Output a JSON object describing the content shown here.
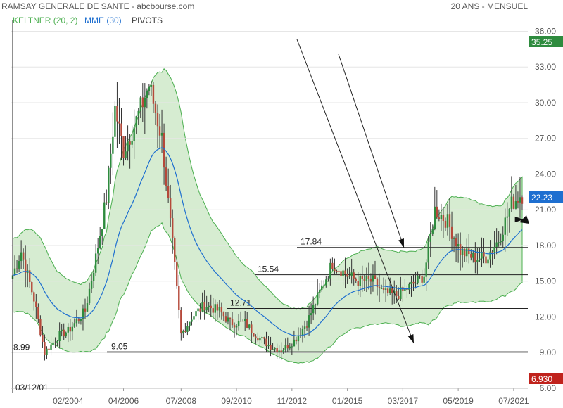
{
  "header": {
    "title": "RAMSAY GENERALE DE SANTE - abcbourse.com",
    "period": "20 ANS - MENSUEL"
  },
  "legend": [
    {
      "label": "KELTNER (20, 2)",
      "color": "#4caf50"
    },
    {
      "label": "MME (30)",
      "color": "#1e6fd0"
    },
    {
      "label": "PIVOTS",
      "color": "#444444"
    }
  ],
  "colors": {
    "up": "#2e8b3e",
    "down": "#b5493a",
    "band_fill": "#cfe9c9",
    "band_line": "#4caf50",
    "ema": "#1e6fd0"
  },
  "chart_data": {
    "type": "candlestick",
    "start_label": "03/12/01",
    "x_ticks": [
      "02/2004",
      "04/2006",
      "07/2008",
      "09/2010",
      "11/2012",
      "01/2015",
      "03/2017",
      "05/2019",
      "07/2021"
    ],
    "y_ticks": [
      "6.00",
      "9.00",
      "12.00",
      "15.00",
      "18.00",
      "21.00",
      "24.00",
      "27.00",
      "30.00",
      "33.00",
      "36.00"
    ],
    "ylim": [
      6,
      36.5
    ],
    "current_price": "22.23",
    "band_upper_value": "35.25",
    "band_lower_value": "6.930",
    "pivots": [
      {
        "label": "17.84",
        "value": 17.84
      },
      {
        "label": "15.54",
        "value": 15.54
      },
      {
        "label": "12.71",
        "value": 12.71
      },
      {
        "label": "9.05",
        "value": 9.05
      },
      {
        "label": "8.99",
        "value": 8.99
      }
    ],
    "price_path": [
      [
        "2001-12",
        15.5
      ],
      [
        "2002-04",
        17.5
      ],
      [
        "2002-10",
        13.5
      ],
      [
        "2003-03",
        9.0
      ],
      [
        "2003-10",
        10.5
      ],
      [
        "2004-02",
        10.8
      ],
      [
        "2004-10",
        12.5
      ],
      [
        "2005-03",
        17.0
      ],
      [
        "2005-08",
        22.0
      ],
      [
        "2005-12",
        29.5
      ],
      [
        "2006-04",
        26.0
      ],
      [
        "2006-10",
        28.5
      ],
      [
        "2007-04",
        31.5
      ],
      [
        "2007-10",
        27.0
      ],
      [
        "2008-03",
        18.0
      ],
      [
        "2008-07",
        10.5
      ],
      [
        "2008-12",
        12.0
      ],
      [
        "2009-06",
        13.0
      ],
      [
        "2010-01",
        12.5
      ],
      [
        "2010-06",
        11.5
      ],
      [
        "2011-01",
        11.5
      ],
      [
        "2011-06",
        10.5
      ],
      [
        "2012-01",
        9.5
      ],
      [
        "2012-06",
        9.2
      ],
      [
        "2012-12",
        10.0
      ],
      [
        "2013-06",
        11.5
      ],
      [
        "2014-01",
        14.5
      ],
      [
        "2014-06",
        16.5
      ],
      [
        "2015-01",
        15.5
      ],
      [
        "2015-06",
        15.0
      ],
      [
        "2016-01",
        15.0
      ],
      [
        "2016-06",
        14.0
      ],
      [
        "2016-12",
        13.8
      ],
      [
        "2017-06",
        14.5
      ],
      [
        "2018-01",
        15.5
      ],
      [
        "2018-06",
        21.0
      ],
      [
        "2018-12",
        20.0
      ],
      [
        "2019-06",
        17.5
      ],
      [
        "2019-12",
        17.0
      ],
      [
        "2020-06",
        17.0
      ],
      [
        "2020-12",
        18.5
      ],
      [
        "2021-06",
        21.5
      ],
      [
        "2021-10",
        22.23
      ]
    ]
  }
}
